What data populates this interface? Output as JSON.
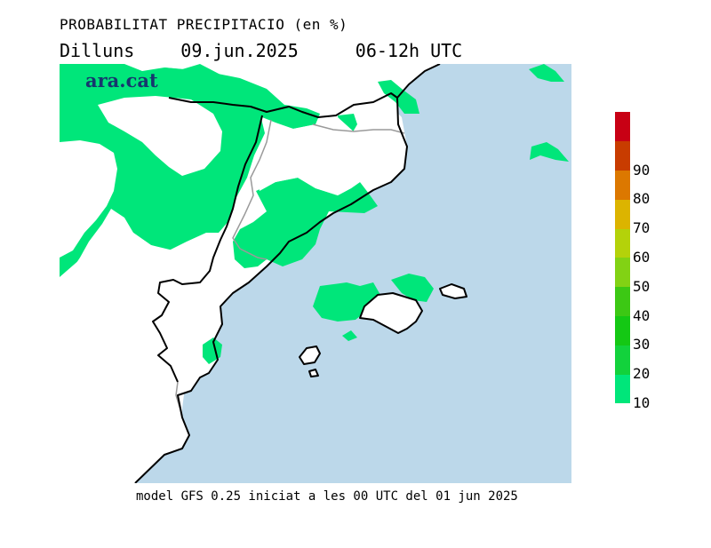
{
  "header": {
    "title": "PROBABILITAT PRECIPITACIO (en %)",
    "day": "Dilluns",
    "date": "09.jun.2025",
    "period": "06-12h UTC"
  },
  "brand": {
    "logo_text": "ara.cat"
  },
  "footer": {
    "model_text": "model GFS 0.25 iniciat a les 00 UTC del 01 jun 2025"
  },
  "legend": {
    "items": [
      {
        "label": "10",
        "color": "#00e67a"
      },
      {
        "label": "20",
        "color": "#12d23c"
      },
      {
        "label": "30",
        "color": "#14c814"
      },
      {
        "label": "40",
        "color": "#3cc814"
      },
      {
        "label": "50",
        "color": "#82d214"
      },
      {
        "label": "60",
        "color": "#b4d20a"
      },
      {
        "label": "70",
        "color": "#dcb400"
      },
      {
        "label": "80",
        "color": "#dc7800"
      },
      {
        "label": "90",
        "color": "#c83c00"
      },
      {
        "label": "",
        "color": "#c80014"
      }
    ]
  },
  "map_colors": {
    "sea": "#bcd8ea",
    "land": "#ffffff",
    "precip_10": "#00e67a",
    "coast": "#000000",
    "border": "#9a9a9a"
  }
}
